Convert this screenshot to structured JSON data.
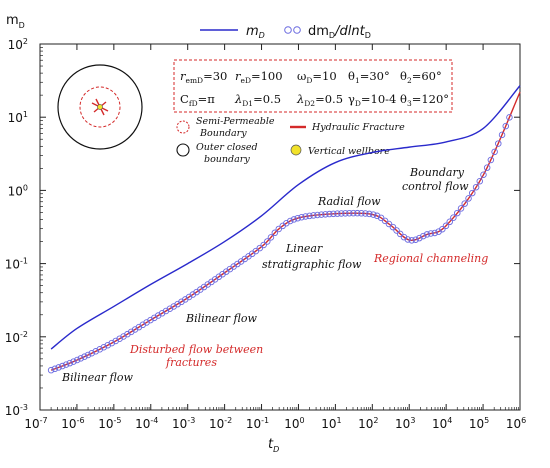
{
  "chart_data": {
    "type": "line",
    "xscale": "log",
    "yscale": "log",
    "xlim": [
      1e-07,
      1000000.0
    ],
    "ylim": [
      0.001,
      100.0
    ],
    "xlabel": "t",
    "xlabel_sub": "D",
    "ylabel": "m",
    "ylabel_sub": "D",
    "x_ticks": [
      "10-7",
      "10-6",
      "10-5",
      "10-4",
      "10-3",
      "10-2",
      "10-1",
      "100",
      "101",
      "102",
      "103",
      "104",
      "105",
      "106"
    ],
    "y_ticks": [
      "10-3",
      "10-2",
      "10-1",
      "100",
      "101",
      "102"
    ],
    "series": [
      {
        "name": "mD",
        "legend_main": "m",
        "legend_sub": "D",
        "style": "line",
        "color": "#2a2acc",
        "x": [
          2e-07,
          1e-06,
          1e-05,
          0.0001,
          0.001,
          0.01,
          0.1,
          1,
          10,
          100,
          1000,
          10000.0,
          100000.0,
          1000000.0
        ],
        "y": [
          0.0068,
          0.013,
          0.026,
          0.052,
          0.1,
          0.2,
          0.45,
          1.2,
          2.4,
          3.3,
          3.9,
          4.6,
          7.0,
          27
        ]
      },
      {
        "name": "dmD/dlntD",
        "legend_main": "dm",
        "legend_sub": "D",
        "legend_mid": "/dlnt",
        "legend_sub2": "D",
        "style": "circles",
        "color": "#6a6ae0",
        "fit_color": "#d42a2a",
        "x": [
          2e-07,
          1e-06,
          1e-05,
          0.0001,
          0.001,
          0.01,
          0.1,
          0.3,
          1,
          10,
          100,
          300,
          1000,
          3000,
          10000.0,
          100000.0,
          1000000.0
        ],
        "y": [
          0.0035,
          0.0048,
          0.0085,
          0.017,
          0.034,
          0.075,
          0.17,
          0.3,
          0.42,
          0.48,
          0.47,
          0.34,
          0.21,
          0.25,
          0.33,
          1.6,
          22
        ]
      }
    ]
  },
  "params": {
    "row1": [
      {
        "main": "r",
        "sub": "emD",
        "rest": "=30"
      },
      {
        "main": "r",
        "sub": "eD",
        "rest": "=100"
      },
      {
        "main": "ω",
        "sub": "D",
        "rest": "=10"
      },
      {
        "main": "θ",
        "sub": "1",
        "rest": "=30°"
      },
      {
        "main": "θ",
        "sub": "2",
        "rest": "=60°"
      }
    ],
    "row2": [
      {
        "main": "C",
        "sub": "fD",
        "rest": "=π"
      },
      {
        "main": "λ",
        "sub": "D1",
        "rest": "=0.5"
      },
      {
        "main": "λ",
        "sub": "D2",
        "rest": "=0.5"
      },
      {
        "main": "γ",
        "sub": "D",
        "rest": "=10-4"
      },
      {
        "main": "θ",
        "sub": "3",
        "rest": "=120°"
      }
    ]
  },
  "schematic": {
    "semi_permeable_line1": "Semi-Permeable",
    "semi_permeable_line2": "Boundary",
    "hydraulic_fracture": "Hydraulic Fracture",
    "outer_line1": "Outer closed",
    "outer_line2": "boundary",
    "vertical_wellbore": "Vertical wellbore"
  },
  "annotations": {
    "bilinear_early": "Bilinear flow",
    "disturbed_line1": "Disturbed flow between",
    "disturbed_line2": "fractures",
    "bilinear_mid": "Bilinear flow",
    "linear_line1": "Linear",
    "linear_line2": "stratigraphic flow",
    "radial": "Radial flow",
    "regional": "Regional channeling",
    "boundary_line1": "Boundary",
    "boundary_line2": "control flow"
  },
  "colors": {
    "md_line": "#2a2acc",
    "derivative_marker": "#6a6ae0",
    "annotation_red": "#d42a2a",
    "params_box": "#d42a2a"
  }
}
